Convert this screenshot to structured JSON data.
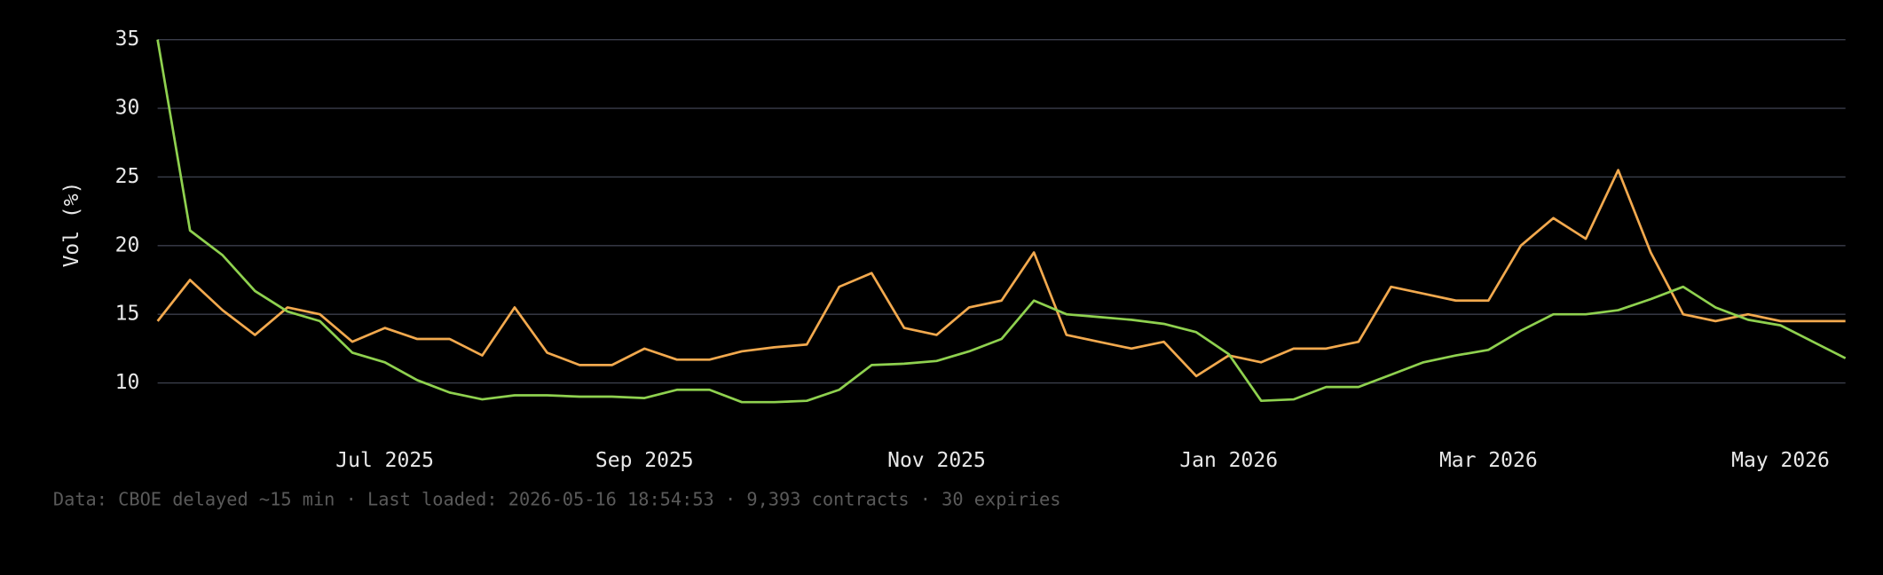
{
  "chart_data": {
    "type": "line",
    "y_label": "Vol (%)",
    "categories": [
      null,
      null,
      null,
      null,
      null,
      null,
      null,
      "Jul 2025",
      null,
      null,
      null,
      null,
      null,
      null,
      null,
      "Sep 2025",
      null,
      null,
      null,
      null,
      null,
      null,
      null,
      null,
      "Nov 2025",
      null,
      null,
      null,
      null,
      null,
      null,
      null,
      null,
      "Jan 2026",
      null,
      null,
      null,
      null,
      null,
      null,
      null,
      "Mar 2026",
      null,
      null,
      null,
      null,
      null,
      null,
      null,
      null,
      "May 2026",
      null,
      null
    ],
    "series": [
      {
        "color": "#f2a94e",
        "values": [
          14.5,
          17.5,
          15.3,
          13.5,
          15.5,
          15,
          13,
          14,
          13.2,
          13.2,
          12,
          15.5,
          12.2,
          11.3,
          11.3,
          12.5,
          11.7,
          11.7,
          12.3,
          12.6,
          12.8,
          17,
          18,
          14,
          13.5,
          15.5,
          16,
          19.5,
          13.5,
          13,
          12.5,
          13,
          10.5,
          12,
          11.5,
          12.5,
          12.5,
          13,
          17,
          16.5,
          16,
          16,
          20,
          22,
          20.5,
          25.5,
          19.5,
          15,
          14.5,
          15,
          14.5,
          14.5,
          14.5
        ]
      },
      {
        "color": "#8fd14f",
        "values": [
          35,
          21.1,
          19.3,
          16.7,
          15.2,
          14.5,
          12.2,
          11.5,
          10.2,
          9.3,
          8.8,
          9.1,
          9.1,
          9.0,
          9.0,
          8.9,
          9.5,
          9.5,
          8.6,
          8.6,
          8.7,
          9.5,
          11.3,
          11.4,
          11.6,
          12.3,
          13.2,
          16,
          15,
          14.8,
          14.6,
          14.3,
          13.7,
          12.1,
          8.7,
          8.8,
          9.7,
          9.7,
          10.6,
          11.5,
          12.0,
          12.4,
          13.8,
          15,
          15,
          15.3,
          16.1,
          17,
          15.5,
          14.6,
          14.2,
          13,
          11.8
        ]
      }
    ],
    "ylim": [
      7,
      35
    ],
    "yticks": [
      10,
      15,
      20,
      25,
      30,
      35
    ],
    "grid": true
  },
  "footer": {
    "text": "Data: CBOE delayed ~15 min · Last loaded: 2026-05-16 18:54:53 · 9,393 contracts · 30 expiries"
  }
}
